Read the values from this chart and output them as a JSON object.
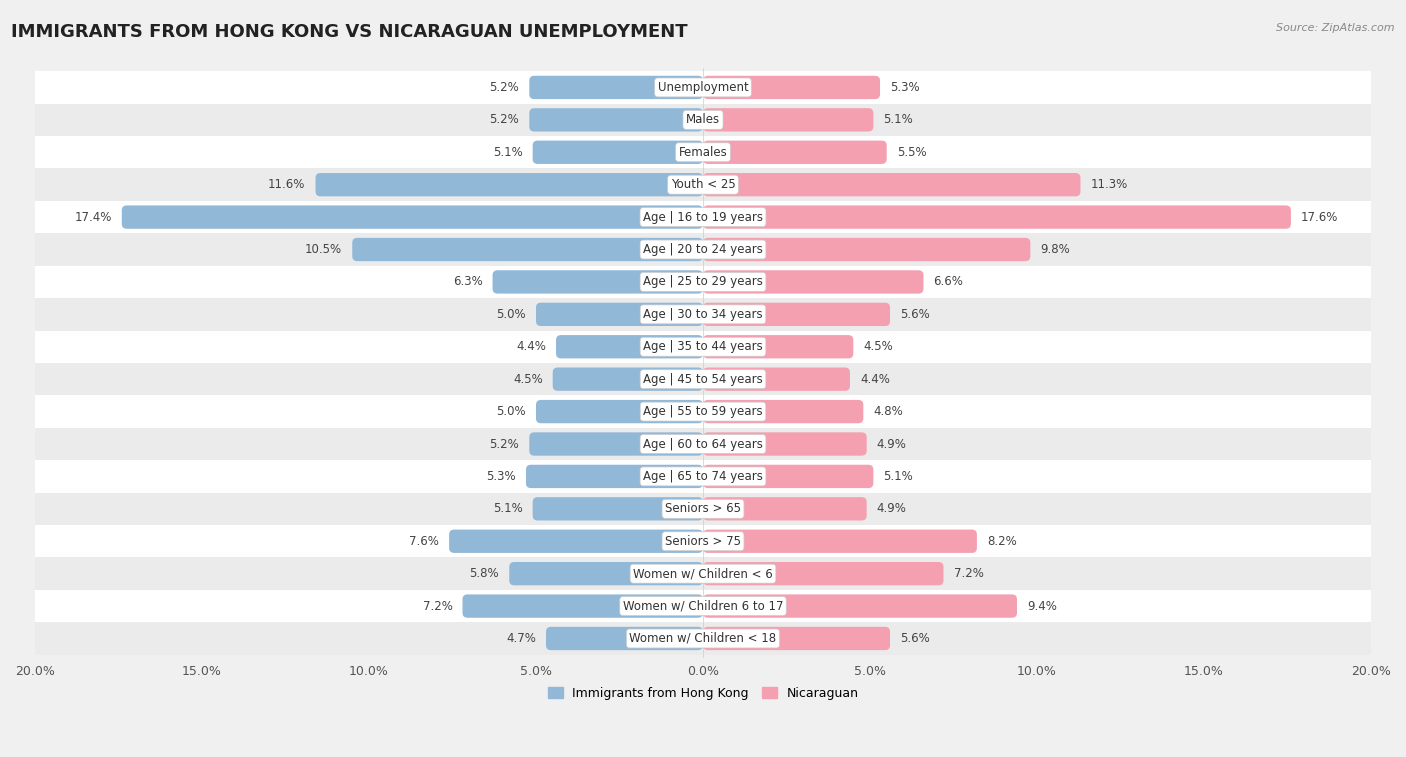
{
  "title": "IMMIGRANTS FROM HONG KONG VS NICARAGUAN UNEMPLOYMENT",
  "source": "Source: ZipAtlas.com",
  "categories": [
    "Unemployment",
    "Males",
    "Females",
    "Youth < 25",
    "Age | 16 to 19 years",
    "Age | 20 to 24 years",
    "Age | 25 to 29 years",
    "Age | 30 to 34 years",
    "Age | 35 to 44 years",
    "Age | 45 to 54 years",
    "Age | 55 to 59 years",
    "Age | 60 to 64 years",
    "Age | 65 to 74 years",
    "Seniors > 65",
    "Seniors > 75",
    "Women w/ Children < 6",
    "Women w/ Children 6 to 17",
    "Women w/ Children < 18"
  ],
  "left_values": [
    5.2,
    5.2,
    5.1,
    11.6,
    17.4,
    10.5,
    6.3,
    5.0,
    4.4,
    4.5,
    5.0,
    5.2,
    5.3,
    5.1,
    7.6,
    5.8,
    7.2,
    4.7
  ],
  "right_values": [
    5.3,
    5.1,
    5.5,
    11.3,
    17.6,
    9.8,
    6.6,
    5.6,
    4.5,
    4.4,
    4.8,
    4.9,
    5.1,
    4.9,
    8.2,
    7.2,
    9.4,
    5.6
  ],
  "left_color": "#92b8d8",
  "right_color": "#f4a0b0",
  "row_color_odd": "#f5f5f5",
  "row_color_even": "#e8e8e8",
  "background_color": "#f0f0f0",
  "xlim": 20.0,
  "legend_left": "Immigrants from Hong Kong",
  "legend_right": "Nicaraguan",
  "title_fontsize": 13,
  "label_fontsize": 8.5,
  "value_fontsize": 8.5
}
